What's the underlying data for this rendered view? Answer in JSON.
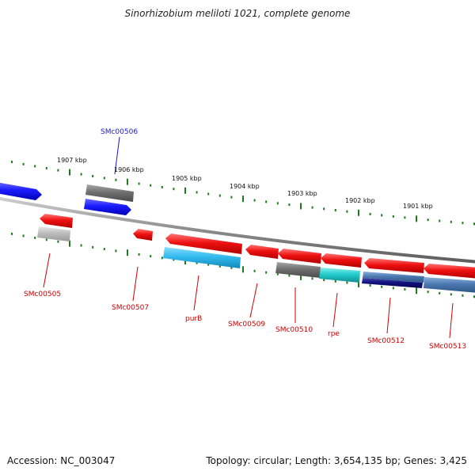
{
  "title": "Sinorhizobium meliloti 1021, complete genome",
  "footer": {
    "accession": "Accession: NC_003047",
    "summary": "Topology: circular; Length: 3,654,135 bp; Genes: 3,425"
  },
  "ruler": {
    "color": "#1e7a1e",
    "ticks": [
      "1907 kbp",
      "1906 kbp",
      "1905 kbp",
      "1904 kbp",
      "1903 kbp",
      "1902 kbp",
      "1901 kbp"
    ]
  },
  "backbone_color": "#8c8c8c",
  "genes": [
    {
      "id": "gene-upper-left-blue",
      "label": "",
      "color": "#1a1aff"
    },
    {
      "id": "SMc00506",
      "label": "SMc00506",
      "color": "#1a1aff",
      "label_color": "#1a1acc"
    },
    {
      "id": "SMc00505",
      "label": "SMc00505",
      "color": "#ee1111",
      "label_color": "#cc0000"
    },
    {
      "id": "SMc00507",
      "label": "SMc00507",
      "color": "#ee1111",
      "label_color": "#cc0000"
    },
    {
      "id": "purB",
      "label": "purB",
      "color": "#ee1111",
      "label_color": "#cc0000"
    },
    {
      "id": "SMc00509",
      "label": "SMc00509",
      "color": "#ee1111",
      "label_color": "#cc0000"
    },
    {
      "id": "SMc00510",
      "label": "SMc00510",
      "color": "#ee1111",
      "label_color": "#cc0000"
    },
    {
      "id": "rpe",
      "label": "rpe",
      "color": "#ee1111",
      "label_color": "#cc0000"
    },
    {
      "id": "SMc00512",
      "label": "SMc00512",
      "color": "#ee1111",
      "label_color": "#cc0000"
    },
    {
      "id": "SMc00513",
      "label": "SMc00513",
      "color": "#ee1111",
      "label_color": "#cc0000"
    }
  ],
  "feature_colors": {
    "red": "#ee1111",
    "blue": "#1a1aff",
    "gray": "#707070",
    "light_gray": "#bdbdbd",
    "cyan_light": "#33bbee",
    "cyan": "#22cccc",
    "navy": "#101080",
    "steel": "#4a78b0"
  }
}
